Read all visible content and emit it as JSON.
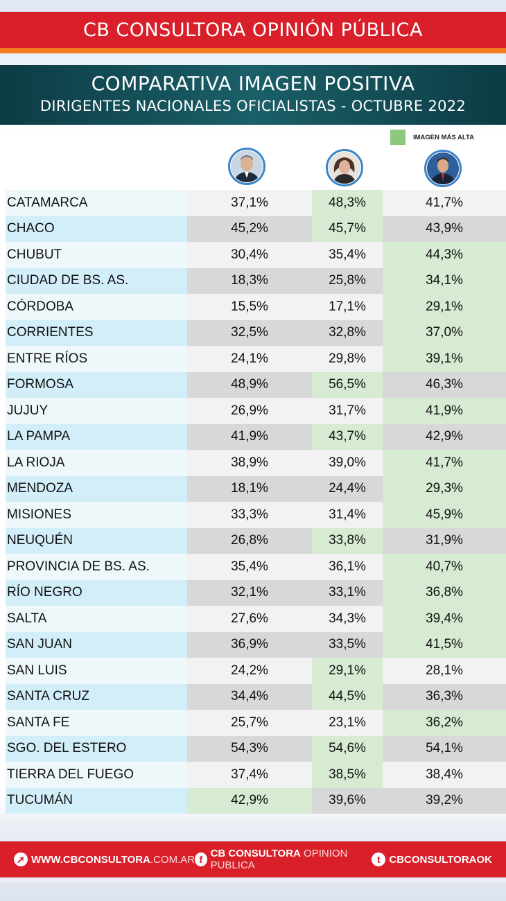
{
  "header": {
    "brand": "CB CONSULTORA OPINIÓN PÚBLICA",
    "title_line1": "COMPARATIVA IMAGEN POSITIVA",
    "title_line2": "DIRIGENTES NACIONALES OFICIALISTAS - OCTUBRE 2022"
  },
  "legend": {
    "label": "IMAGEN MÁS ALTA",
    "color": "#8ec77e"
  },
  "colors": {
    "brand_red": "#d81f2a",
    "accent_orange": "#f07c1f",
    "title_band": "#0c3c45",
    "highlight": "#d6ebd1"
  },
  "avatars": [
    "person-photo-1",
    "person-photo-2",
    "person-photo-3"
  ],
  "rows": [
    {
      "province": "CATAMARCA",
      "v1": "37,1%",
      "v2": "48,3%",
      "v3": "41,7%",
      "highest": 2
    },
    {
      "province": "CHACO",
      "v1": "45,2%",
      "v2": "45,7%",
      "v3": "43,9%",
      "highest": 2
    },
    {
      "province": "CHUBUT",
      "v1": "30,4%",
      "v2": "35,4%",
      "v3": "44,3%",
      "highest": 3
    },
    {
      "province": "CIUDAD DE BS. AS.",
      "v1": "18,3%",
      "v2": "25,8%",
      "v3": "34,1%",
      "highest": 3
    },
    {
      "province": "CÓRDOBA",
      "v1": "15,5%",
      "v2": "17,1%",
      "v3": "29,1%",
      "highest": 3
    },
    {
      "province": "CORRIENTES",
      "v1": "32,5%",
      "v2": "32,8%",
      "v3": "37,0%",
      "highest": 3
    },
    {
      "province": "ENTRE RÍOS",
      "v1": "24,1%",
      "v2": "29,8%",
      "v3": "39,1%",
      "highest": 3
    },
    {
      "province": "FORMOSA",
      "v1": "48,9%",
      "v2": "56,5%",
      "v3": "46,3%",
      "highest": 2
    },
    {
      "province": "JUJUY",
      "v1": "26,9%",
      "v2": "31,7%",
      "v3": "41,9%",
      "highest": 3
    },
    {
      "province": "LA PAMPA",
      "v1": "41,9%",
      "v2": "43,7%",
      "v3": "42,9%",
      "highest": 2
    },
    {
      "province": "LA RIOJA",
      "v1": "38,9%",
      "v2": "39,0%",
      "v3": "41,7%",
      "highest": 3
    },
    {
      "province": "MENDOZA",
      "v1": "18,1%",
      "v2": "24,4%",
      "v3": "29,3%",
      "highest": 3
    },
    {
      "province": "MISIONES",
      "v1": "33,3%",
      "v2": "31,4%",
      "v3": "45,9%",
      "highest": 3
    },
    {
      "province": "NEUQUÉN",
      "v1": "26,8%",
      "v2": "33,8%",
      "v3": "31,9%",
      "highest": 2
    },
    {
      "province": "PROVINCIA DE BS. AS.",
      "v1": "35,4%",
      "v2": "36,1%",
      "v3": "40,7%",
      "highest": 3
    },
    {
      "province": "RÍO NEGRO",
      "v1": "32,1%",
      "v2": "33,1%",
      "v3": "36,8%",
      "highest": 3
    },
    {
      "province": "SALTA",
      "v1": "27,6%",
      "v2": "34,3%",
      "v3": "39,4%",
      "highest": 3
    },
    {
      "province": "SAN JUAN",
      "v1": "36,9%",
      "v2": "33,5%",
      "v3": "41,5%",
      "highest": 3
    },
    {
      "province": "SAN LUIS",
      "v1": "24,2%",
      "v2": "29,1%",
      "v3": "28,1%",
      "highest": 2
    },
    {
      "province": "SANTA CRUZ",
      "v1": "34,4%",
      "v2": "44,5%",
      "v3": "36,3%",
      "highest": 2
    },
    {
      "province": "SANTA FE",
      "v1": "25,7%",
      "v2": "23,1%",
      "v3": "36,2%",
      "highest": 3
    },
    {
      "province": "SGO. DEL ESTERO",
      "v1": "54,3%",
      "v2": "54,6%",
      "v3": "54,1%",
      "highest": 2
    },
    {
      "province": "TIERRA DEL FUEGO",
      "v1": "37,4%",
      "v2": "38,5%",
      "v3": "38,4%",
      "highest": 2
    },
    {
      "province": "TUCUMÁN",
      "v1": "42,9%",
      "v2": "39,6%",
      "v3": "39,2%",
      "highest": 1
    }
  ],
  "footer": {
    "web_bold": "WWW.CBCONSULTORA",
    "web_light": ".COM.AR",
    "fb_bold": "CB CONSULTORA",
    "fb_light": "OPINION PUBLICA",
    "tw": "CBCONSULTORAOK"
  }
}
